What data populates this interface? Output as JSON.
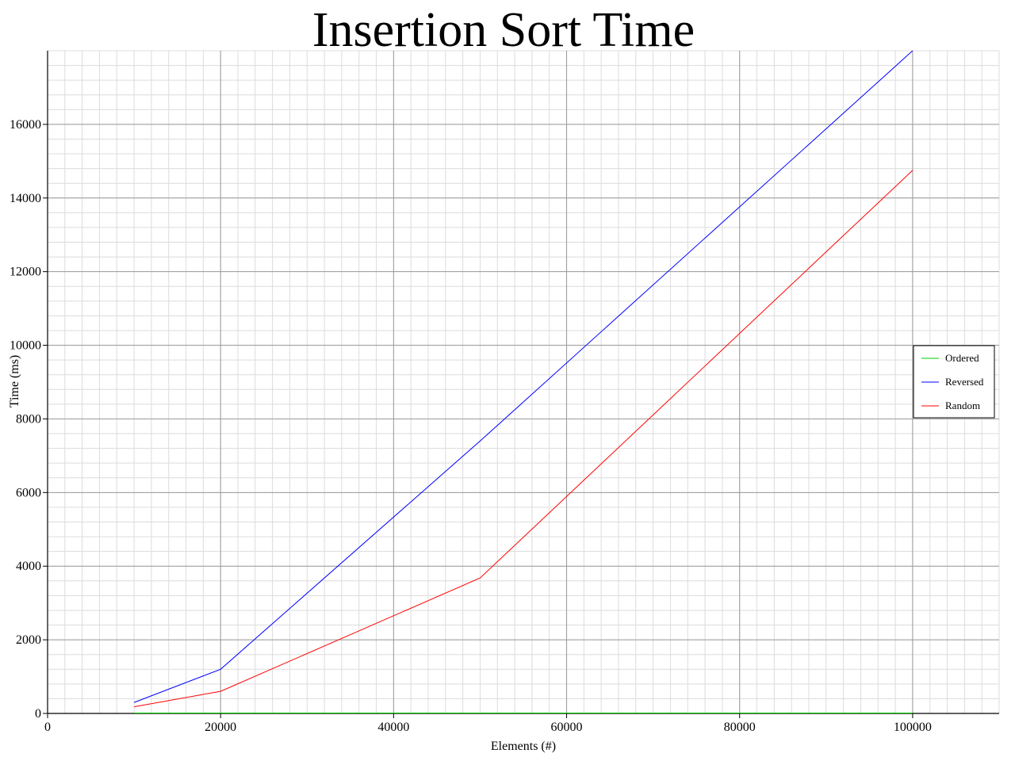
{
  "chart_data": {
    "type": "line",
    "title": "Insertion Sort Time",
    "xlabel": "Elements (#)",
    "ylabel": "Time (ms)",
    "xlim": [
      0,
      110000
    ],
    "ylim": [
      0,
      18000
    ],
    "x_ticks": [
      0,
      20000,
      40000,
      60000,
      80000,
      100000
    ],
    "y_ticks": [
      0,
      2000,
      4000,
      6000,
      8000,
      10000,
      12000,
      14000,
      16000
    ],
    "x_tick_labels": [
      "0",
      "20000",
      "40000",
      "60000",
      "80000",
      "100000"
    ],
    "y_tick_labels": [
      "0",
      "2000",
      "4000",
      "6000",
      "8000",
      "10000",
      "12000",
      "14000",
      "16000"
    ],
    "grid": true,
    "legend_position": "right",
    "series": [
      {
        "name": "Ordered",
        "color": "#00cc00",
        "points": [
          [
            10000,
            10
          ],
          [
            20000,
            10
          ],
          [
            50000,
            10
          ],
          [
            100000,
            10
          ]
        ]
      },
      {
        "name": "Reversed",
        "color": "#0000ff",
        "points": [
          [
            10000,
            300
          ],
          [
            20000,
            1200
          ],
          [
            50000,
            7400
          ],
          [
            100000,
            18000
          ]
        ]
      },
      {
        "name": "Random",
        "color": "#ff0000",
        "points": [
          [
            10000,
            180
          ],
          [
            20000,
            600
          ],
          [
            50000,
            3680
          ],
          [
            100000,
            14750
          ]
        ]
      }
    ]
  }
}
